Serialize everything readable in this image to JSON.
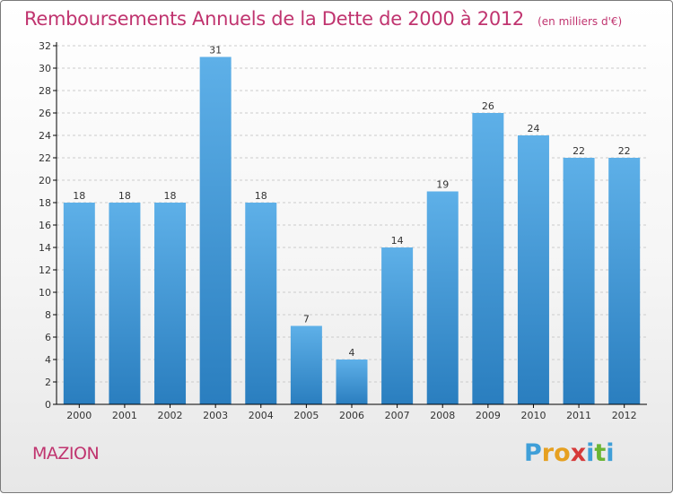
{
  "title": "Remboursements Annuels de la Dette de 2000 à 2012",
  "unit": "(en milliers d'€)",
  "commune": "MAZION",
  "logo": {
    "text": "Proxiti",
    "letters": [
      {
        "char": "P",
        "color": "#3f9fd8"
      },
      {
        "char": "r",
        "color": "#e6a020"
      },
      {
        "char": "o",
        "color": "#e6a020"
      },
      {
        "char": "x",
        "color": "#d63a3a"
      },
      {
        "char": "i",
        "color": "#3f9fd8"
      },
      {
        "char": "t",
        "color": "#6ab534"
      },
      {
        "char": "i",
        "color": "#3f9fd8"
      }
    ]
  },
  "colors": {
    "title": "#c0346f",
    "bar_top": "#5eb0e8",
    "bar_bottom": "#2a7ebf",
    "axis": "#000000",
    "grid": "#cccccc",
    "text": "#333333"
  },
  "chart_data": {
    "type": "bar",
    "title": "Remboursements Annuels de la Dette de 2000 à 2012",
    "subtitle": "(en milliers d'€)",
    "categories": [
      "2000",
      "2001",
      "2002",
      "2003",
      "2004",
      "2005",
      "2006",
      "2007",
      "2008",
      "2009",
      "2010",
      "2011",
      "2012"
    ],
    "values": [
      18,
      18,
      18,
      31,
      18,
      7,
      4,
      14,
      19,
      26,
      24,
      22,
      22
    ],
    "data_labels": [
      "18",
      "18",
      "18",
      "31",
      "18",
      "7",
      "4",
      "14",
      "19",
      "26",
      "24",
      "22",
      "22"
    ],
    "xlabel": "",
    "ylabel": "",
    "ylim": [
      0,
      32
    ],
    "yticks": [
      0,
      2,
      4,
      6,
      8,
      10,
      12,
      14,
      16,
      18,
      20,
      22,
      24,
      26,
      28,
      30,
      32
    ],
    "grid": "horizontal-dashed",
    "legend": "none"
  }
}
